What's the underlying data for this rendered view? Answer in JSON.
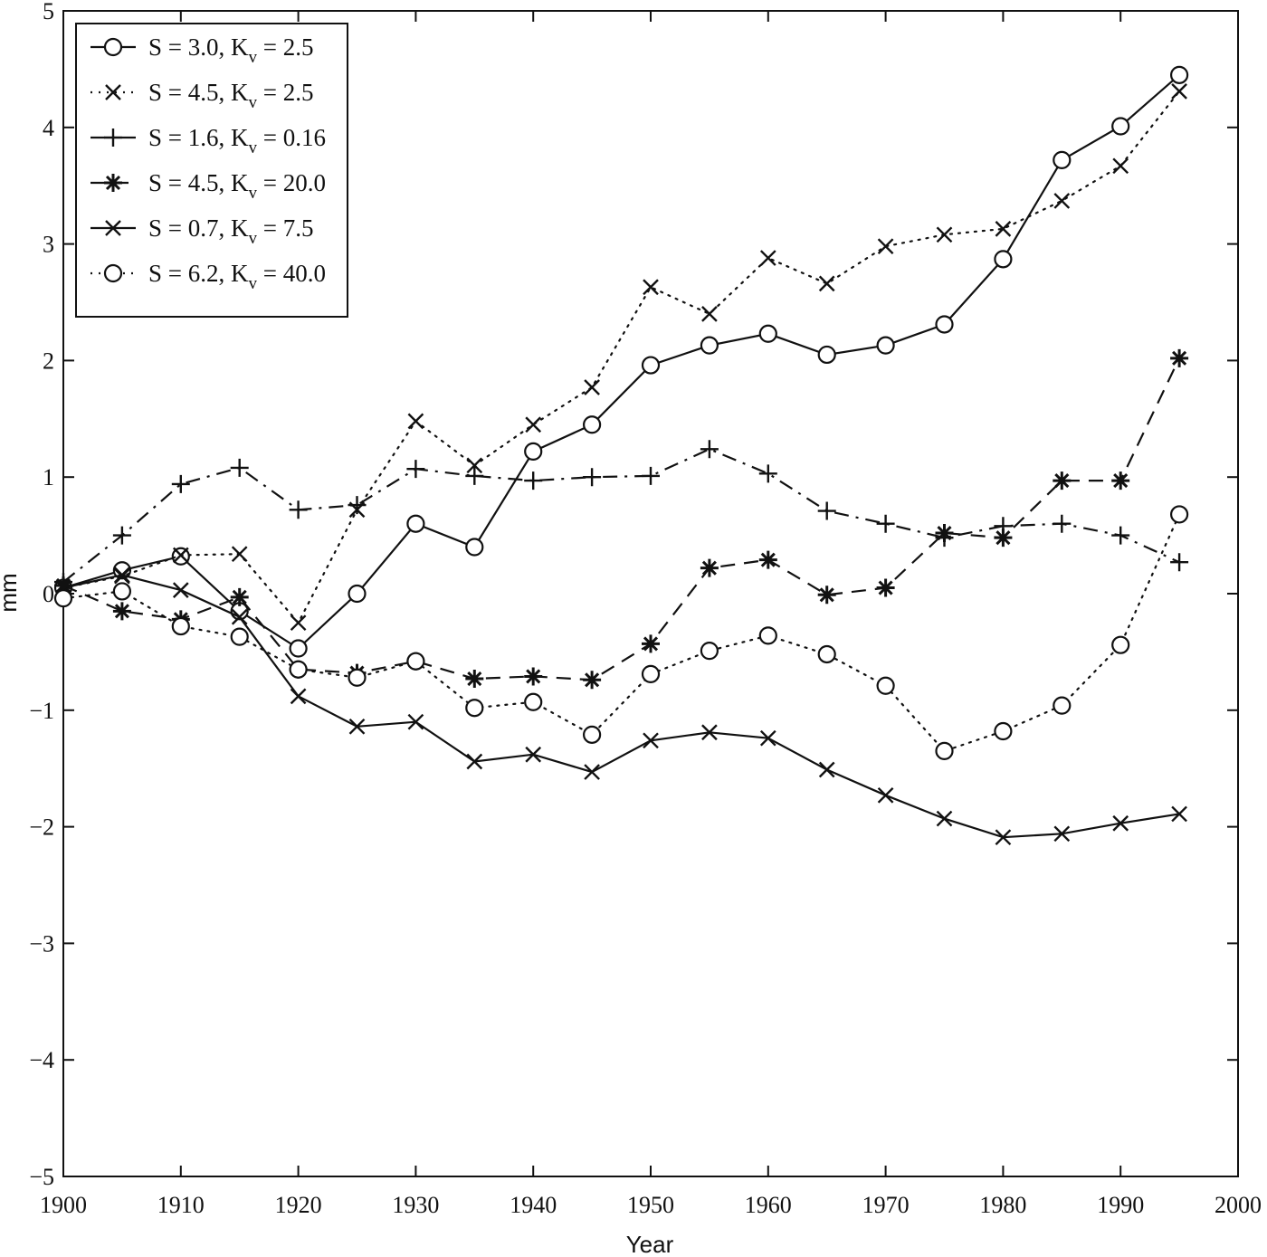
{
  "chart_data": {
    "type": "line",
    "title": "",
    "xlabel": "Year",
    "ylabel": "mm",
    "xlim": [
      1900,
      2000
    ],
    "ylim": [
      -5,
      5
    ],
    "xticks": [
      1900,
      1910,
      1920,
      1930,
      1940,
      1950,
      1960,
      1970,
      1980,
      1990,
      2000
    ],
    "yticks": [
      -5,
      -4,
      -3,
      -2,
      -1,
      0,
      1,
      2,
      3,
      4,
      5
    ],
    "grid": false,
    "legend_position": "top-left",
    "x": [
      1900,
      1905,
      1910,
      1915,
      1920,
      1925,
      1930,
      1935,
      1940,
      1945,
      1950,
      1955,
      1960,
      1965,
      1970,
      1975,
      1980,
      1985,
      1990,
      1995
    ],
    "series": [
      {
        "legend": {
          "pre": "S = 3.0, K",
          "sub": "v",
          "post": " = 2.5"
        },
        "line_style": "solid",
        "marker": "circle",
        "values": [
          0.05,
          0.2,
          0.32,
          -0.15,
          -0.47,
          0.0,
          0.6,
          0.4,
          1.22,
          1.45,
          1.96,
          2.13,
          2.23,
          2.05,
          2.13,
          2.31,
          2.87,
          3.72,
          4.01,
          4.45
        ]
      },
      {
        "legend": {
          "pre": "S = 4.5, K",
          "sub": "v",
          "post": " = 2.5"
        },
        "line_style": "dotted",
        "marker": "x",
        "values": [
          0.05,
          0.15,
          0.33,
          0.34,
          -0.25,
          0.72,
          1.48,
          1.1,
          1.45,
          1.77,
          2.63,
          2.4,
          2.88,
          2.66,
          2.98,
          3.08,
          3.13,
          3.37,
          3.67,
          4.31
        ]
      },
      {
        "legend": {
          "pre": "S = 1.6, K",
          "sub": "v",
          "post": " = 0.16"
        },
        "line_style": "dashdot",
        "marker": "plus",
        "values": [
          0.1,
          0.5,
          0.94,
          1.08,
          0.72,
          0.76,
          1.07,
          1.01,
          0.97,
          1.0,
          1.01,
          1.24,
          1.03,
          0.71,
          0.6,
          0.48,
          0.58,
          0.6,
          0.5,
          0.27
        ]
      },
      {
        "legend": {
          "pre": "S = 4.5, K",
          "sub": "v",
          "post": " = 20.0"
        },
        "line_style": "dashed",
        "marker": "star",
        "values": [
          0.07,
          -0.15,
          -0.22,
          -0.03,
          -0.65,
          -0.68,
          -0.58,
          -0.73,
          -0.71,
          -0.74,
          -0.43,
          0.22,
          0.29,
          -0.01,
          0.05,
          0.52,
          0.48,
          0.97,
          0.97,
          2.02
        ]
      },
      {
        "legend": {
          "pre": "S = 0.7, K",
          "sub": "v",
          "post": " = 7.5"
        },
        "line_style": "solid",
        "marker": "x",
        "values": [
          0.05,
          0.16,
          0.03,
          -0.2,
          -0.88,
          -1.14,
          -1.1,
          -1.44,
          -1.38,
          -1.53,
          -1.26,
          -1.19,
          -1.24,
          -1.51,
          -1.73,
          -1.93,
          -2.09,
          -2.06,
          -1.97,
          -1.89
        ]
      },
      {
        "legend": {
          "pre": "S = 6.2, K",
          "sub": "v",
          "post": " = 40.0"
        },
        "line_style": "dotted",
        "marker": "circle",
        "values": [
          -0.04,
          0.02,
          -0.28,
          -0.37,
          -0.65,
          -0.72,
          -0.58,
          -0.98,
          -0.93,
          -1.21,
          -0.69,
          -0.49,
          -0.36,
          -0.52,
          -0.79,
          -1.35,
          -1.18,
          -0.96,
          -0.44,
          0.68
        ]
      }
    ]
  }
}
